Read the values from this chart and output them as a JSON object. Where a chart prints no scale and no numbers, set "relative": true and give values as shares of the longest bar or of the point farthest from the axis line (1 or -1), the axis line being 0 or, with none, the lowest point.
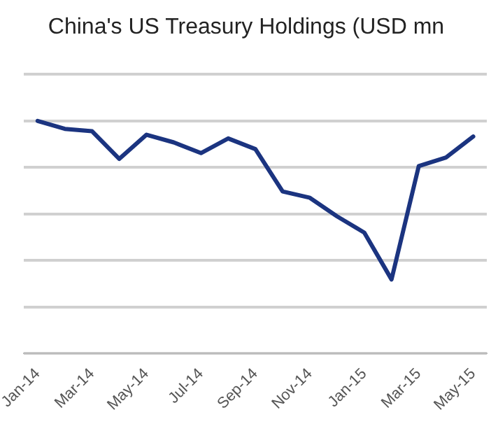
{
  "chart_data": {
    "type": "line",
    "title": "China's US Treasury Holdings (USD mn",
    "relative": true,
    "categories": [
      "Jan-14",
      null,
      "Mar-14",
      null,
      "May-14",
      null,
      "Jul-14",
      null,
      "Sep-14",
      null,
      "Nov-14",
      null,
      "Jan-15",
      null,
      "Mar-15",
      null,
      "May-15"
    ],
    "series": [
      {
        "color": "#1b3480",
        "values": [
          1.0,
          0.966,
          0.956,
          0.837,
          0.941,
          0.908,
          0.862,
          0.925,
          0.879,
          0.697,
          0.67,
          0.59,
          0.52,
          0.319,
          0.806,
          0.843,
          0.933
        ]
      }
    ],
    "grid": "y",
    "legend": false,
    "marker": "none",
    "line_style": "solid"
  }
}
